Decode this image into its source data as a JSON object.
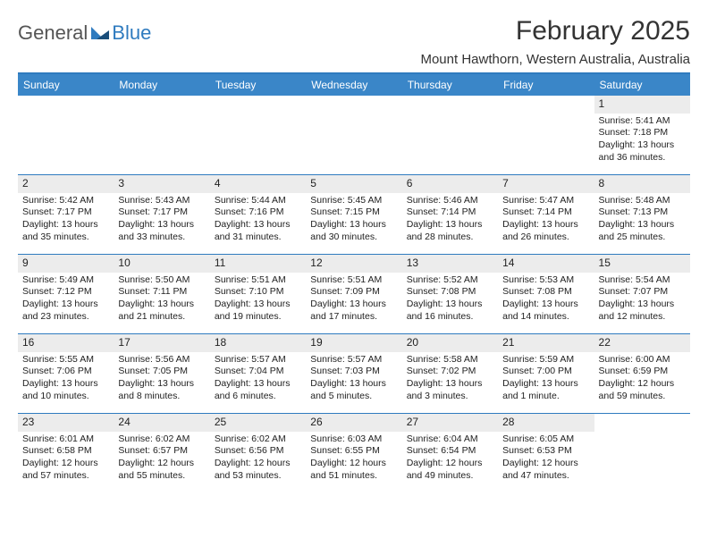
{
  "logo": {
    "general": "General",
    "blue": "Blue"
  },
  "header": {
    "title": "February 2025",
    "location": "Mount Hawthorn, Western Australia, Australia"
  },
  "colors": {
    "accent": "#2f7bbf",
    "header_bg": "#3a86c8",
    "daynum_bg": "#ececec",
    "text": "#222"
  },
  "day_names": [
    "Sunday",
    "Monday",
    "Tuesday",
    "Wednesday",
    "Thursday",
    "Friday",
    "Saturday"
  ],
  "weeks": [
    [
      null,
      null,
      null,
      null,
      null,
      null,
      {
        "n": "1",
        "sr": "Sunrise: 5:41 AM",
        "ss": "Sunset: 7:18 PM",
        "d1": "Daylight: 13 hours",
        "d2": "and 36 minutes."
      }
    ],
    [
      {
        "n": "2",
        "sr": "Sunrise: 5:42 AM",
        "ss": "Sunset: 7:17 PM",
        "d1": "Daylight: 13 hours",
        "d2": "and 35 minutes."
      },
      {
        "n": "3",
        "sr": "Sunrise: 5:43 AM",
        "ss": "Sunset: 7:17 PM",
        "d1": "Daylight: 13 hours",
        "d2": "and 33 minutes."
      },
      {
        "n": "4",
        "sr": "Sunrise: 5:44 AM",
        "ss": "Sunset: 7:16 PM",
        "d1": "Daylight: 13 hours",
        "d2": "and 31 minutes."
      },
      {
        "n": "5",
        "sr": "Sunrise: 5:45 AM",
        "ss": "Sunset: 7:15 PM",
        "d1": "Daylight: 13 hours",
        "d2": "and 30 minutes."
      },
      {
        "n": "6",
        "sr": "Sunrise: 5:46 AM",
        "ss": "Sunset: 7:14 PM",
        "d1": "Daylight: 13 hours",
        "d2": "and 28 minutes."
      },
      {
        "n": "7",
        "sr": "Sunrise: 5:47 AM",
        "ss": "Sunset: 7:14 PM",
        "d1": "Daylight: 13 hours",
        "d2": "and 26 minutes."
      },
      {
        "n": "8",
        "sr": "Sunrise: 5:48 AM",
        "ss": "Sunset: 7:13 PM",
        "d1": "Daylight: 13 hours",
        "d2": "and 25 minutes."
      }
    ],
    [
      {
        "n": "9",
        "sr": "Sunrise: 5:49 AM",
        "ss": "Sunset: 7:12 PM",
        "d1": "Daylight: 13 hours",
        "d2": "and 23 minutes."
      },
      {
        "n": "10",
        "sr": "Sunrise: 5:50 AM",
        "ss": "Sunset: 7:11 PM",
        "d1": "Daylight: 13 hours",
        "d2": "and 21 minutes."
      },
      {
        "n": "11",
        "sr": "Sunrise: 5:51 AM",
        "ss": "Sunset: 7:10 PM",
        "d1": "Daylight: 13 hours",
        "d2": "and 19 minutes."
      },
      {
        "n": "12",
        "sr": "Sunrise: 5:51 AM",
        "ss": "Sunset: 7:09 PM",
        "d1": "Daylight: 13 hours",
        "d2": "and 17 minutes."
      },
      {
        "n": "13",
        "sr": "Sunrise: 5:52 AM",
        "ss": "Sunset: 7:08 PM",
        "d1": "Daylight: 13 hours",
        "d2": "and 16 minutes."
      },
      {
        "n": "14",
        "sr": "Sunrise: 5:53 AM",
        "ss": "Sunset: 7:08 PM",
        "d1": "Daylight: 13 hours",
        "d2": "and 14 minutes."
      },
      {
        "n": "15",
        "sr": "Sunrise: 5:54 AM",
        "ss": "Sunset: 7:07 PM",
        "d1": "Daylight: 13 hours",
        "d2": "and 12 minutes."
      }
    ],
    [
      {
        "n": "16",
        "sr": "Sunrise: 5:55 AM",
        "ss": "Sunset: 7:06 PM",
        "d1": "Daylight: 13 hours",
        "d2": "and 10 minutes."
      },
      {
        "n": "17",
        "sr": "Sunrise: 5:56 AM",
        "ss": "Sunset: 7:05 PM",
        "d1": "Daylight: 13 hours",
        "d2": "and 8 minutes."
      },
      {
        "n": "18",
        "sr": "Sunrise: 5:57 AM",
        "ss": "Sunset: 7:04 PM",
        "d1": "Daylight: 13 hours",
        "d2": "and 6 minutes."
      },
      {
        "n": "19",
        "sr": "Sunrise: 5:57 AM",
        "ss": "Sunset: 7:03 PM",
        "d1": "Daylight: 13 hours",
        "d2": "and 5 minutes."
      },
      {
        "n": "20",
        "sr": "Sunrise: 5:58 AM",
        "ss": "Sunset: 7:02 PM",
        "d1": "Daylight: 13 hours",
        "d2": "and 3 minutes."
      },
      {
        "n": "21",
        "sr": "Sunrise: 5:59 AM",
        "ss": "Sunset: 7:00 PM",
        "d1": "Daylight: 13 hours",
        "d2": "and 1 minute."
      },
      {
        "n": "22",
        "sr": "Sunrise: 6:00 AM",
        "ss": "Sunset: 6:59 PM",
        "d1": "Daylight: 12 hours",
        "d2": "and 59 minutes."
      }
    ],
    [
      {
        "n": "23",
        "sr": "Sunrise: 6:01 AM",
        "ss": "Sunset: 6:58 PM",
        "d1": "Daylight: 12 hours",
        "d2": "and 57 minutes."
      },
      {
        "n": "24",
        "sr": "Sunrise: 6:02 AM",
        "ss": "Sunset: 6:57 PM",
        "d1": "Daylight: 12 hours",
        "d2": "and 55 minutes."
      },
      {
        "n": "25",
        "sr": "Sunrise: 6:02 AM",
        "ss": "Sunset: 6:56 PM",
        "d1": "Daylight: 12 hours",
        "d2": "and 53 minutes."
      },
      {
        "n": "26",
        "sr": "Sunrise: 6:03 AM",
        "ss": "Sunset: 6:55 PM",
        "d1": "Daylight: 12 hours",
        "d2": "and 51 minutes."
      },
      {
        "n": "27",
        "sr": "Sunrise: 6:04 AM",
        "ss": "Sunset: 6:54 PM",
        "d1": "Daylight: 12 hours",
        "d2": "and 49 minutes."
      },
      {
        "n": "28",
        "sr": "Sunrise: 6:05 AM",
        "ss": "Sunset: 6:53 PM",
        "d1": "Daylight: 12 hours",
        "d2": "and 47 minutes."
      },
      null
    ]
  ]
}
